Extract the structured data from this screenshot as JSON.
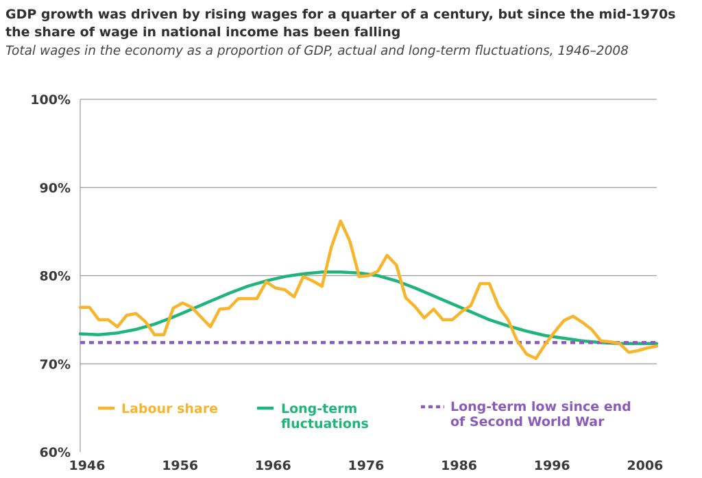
{
  "title": "GDP growth was driven by rising wages for a quarter of a century, but since the mid-1970s the share of wage in national income has been falling",
  "subtitle": "Total wages in the economy as a proportion of GDP, actual and long-term fluctuations, 1946–2008",
  "chart_data": {
    "type": "line",
    "xlim": [
      1946,
      2008
    ],
    "ylim": [
      60,
      100
    ],
    "y_ticks": [
      "100%",
      "90%",
      "80%",
      "70%",
      "60%"
    ],
    "y_tick_values": [
      100,
      90,
      80,
      70,
      60
    ],
    "x_ticks": [
      "1946",
      "1956",
      "1966",
      "1976",
      "1986",
      "1996",
      "2006"
    ],
    "x_tick_values": [
      1946,
      1956,
      1966,
      1976,
      1986,
      1996,
      2006
    ],
    "grid": true,
    "series": [
      {
        "name": "Labour share",
        "color": "#F7B52C",
        "style": "solid",
        "x": [
          1946,
          1947,
          1948,
          1949,
          1950,
          1951,
          1952,
          1953,
          1954,
          1955,
          1956,
          1957,
          1958,
          1959,
          1960,
          1961,
          1962,
          1963,
          1964,
          1965,
          1966,
          1967,
          1968,
          1969,
          1970,
          1971,
          1972,
          1973,
          1974,
          1975,
          1976,
          1977,
          1978,
          1979,
          1980,
          1981,
          1982,
          1983,
          1984,
          1985,
          1986,
          1987,
          1988,
          1989,
          1990,
          1991,
          1992,
          1993,
          1994,
          1995,
          1996,
          1997,
          1998,
          1999,
          2000,
          2001,
          2002,
          2003,
          2004,
          2005,
          2006,
          2007,
          2008
        ],
        "values": [
          76.4,
          76.4,
          75.0,
          75.0,
          74.2,
          75.5,
          75.7,
          74.8,
          73.3,
          73.3,
          76.3,
          76.9,
          76.4,
          75.3,
          74.2,
          76.2,
          76.3,
          77.4,
          77.4,
          77.4,
          79.3,
          78.6,
          78.4,
          77.6,
          79.9,
          79.4,
          78.8,
          83.2,
          86.2,
          83.9,
          79.9,
          80.0,
          80.5,
          82.3,
          81.2,
          77.5,
          76.5,
          75.2,
          76.2,
          75.0,
          75.0,
          75.9,
          76.6,
          79.1,
          79.1,
          76.5,
          75.0,
          72.6,
          71.1,
          70.6,
          72.2,
          73.6,
          74.9,
          75.4,
          74.7,
          73.9,
          72.6,
          72.5,
          72.3,
          71.3,
          71.5,
          71.8,
          72.0
        ]
      },
      {
        "name": "Long-term fluctuations",
        "color": "#1FB57A",
        "style": "solid",
        "x": [
          1946,
          1948,
          1950,
          1952,
          1954,
          1956,
          1958,
          1960,
          1962,
          1964,
          1966,
          1968,
          1970,
          1972,
          1974,
          1976,
          1978,
          1980,
          1982,
          1984,
          1986,
          1988,
          1990,
          1992,
          1994,
          1996,
          1998,
          2000,
          2002,
          2004,
          2006,
          2008
        ],
        "values": [
          73.4,
          73.3,
          73.5,
          73.9,
          74.5,
          75.3,
          76.2,
          77.1,
          78.0,
          78.8,
          79.4,
          79.9,
          80.2,
          80.4,
          80.4,
          80.3,
          80.0,
          79.4,
          78.6,
          77.7,
          76.8,
          75.9,
          75.0,
          74.3,
          73.7,
          73.2,
          72.9,
          72.6,
          72.4,
          72.3,
          72.3,
          72.3
        ]
      },
      {
        "name": "Long-term low since end of Second World War",
        "color": "#8A5BB8",
        "style": "dashed",
        "x": [
          1946,
          2008
        ],
        "values": [
          72.4,
          72.4
        ]
      }
    ],
    "legend": [
      {
        "label": "Labour share",
        "color": "#F7B52C"
      },
      {
        "label_line1": "Long-term",
        "label_line2": "fluctuations",
        "color": "#1FB57A"
      },
      {
        "label_line1": "Long-term low since end",
        "label_line2": "of Second World War",
        "color": "#8A5BB8"
      }
    ]
  }
}
